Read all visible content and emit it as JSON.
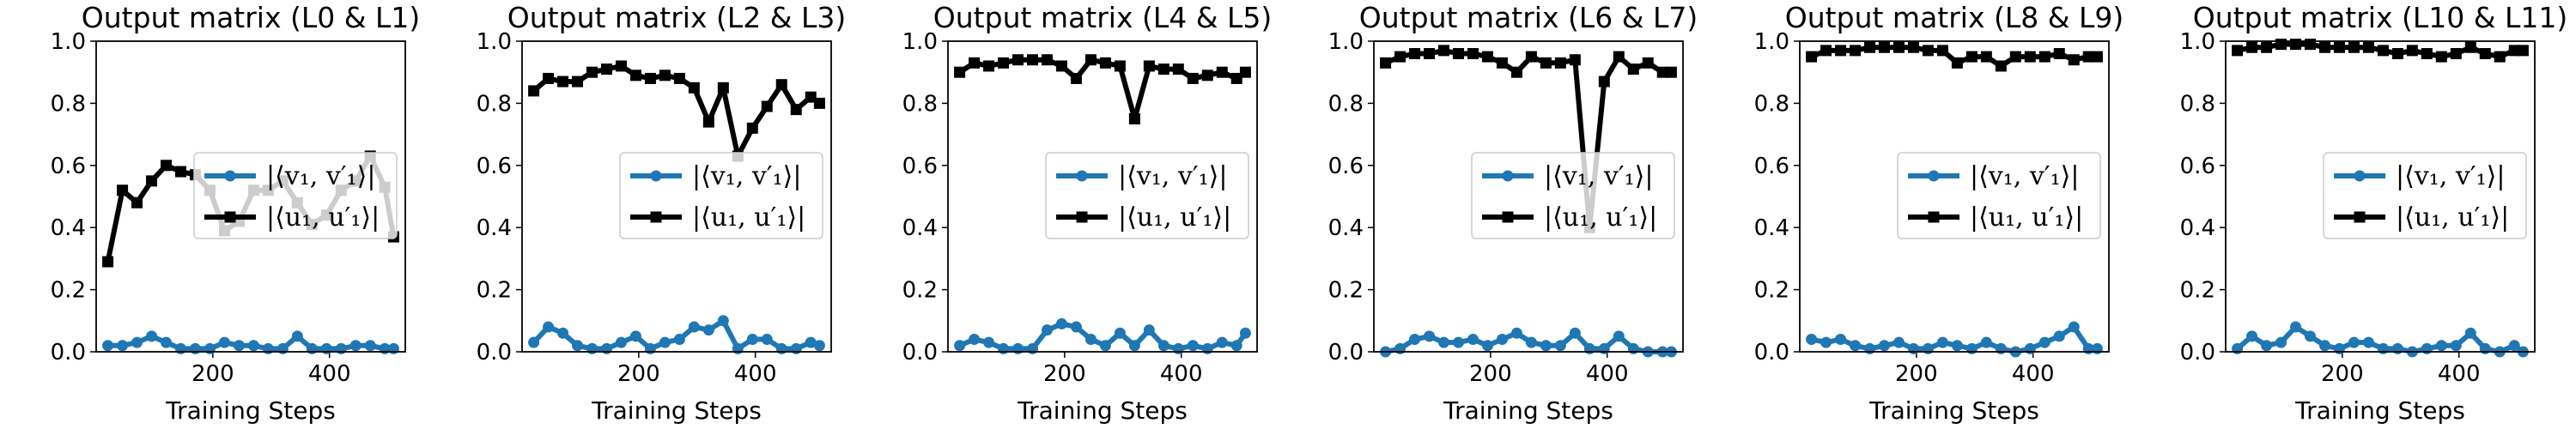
{
  "chart_data": [
    {
      "type": "line",
      "title": "Output matrix (L0 & L1)",
      "xlabel": "Training Steps",
      "ylabel": "",
      "xlim": [
        0,
        530
      ],
      "ylim": [
        0.0,
        1.0
      ],
      "xticks": [
        200,
        400
      ],
      "yticks": [
        0.0,
        0.2,
        0.4,
        0.6,
        0.8,
        1.0
      ],
      "ytick_labels": [
        "0.0",
        "0.2",
        "0.4",
        "0.6",
        "0.8",
        "1.0"
      ],
      "legend": "center-right",
      "x": [
        20,
        45,
        70,
        95,
        120,
        145,
        170,
        195,
        220,
        245,
        270,
        295,
        320,
        345,
        370,
        395,
        420,
        445,
        470,
        495,
        510
      ],
      "series": [
        {
          "name": "|⟨v₁, v′₁⟩|",
          "color": "#1f77b4",
          "marker": "circle",
          "values": [
            0.02,
            0.02,
            0.03,
            0.05,
            0.03,
            0.01,
            0.01,
            0.01,
            0.03,
            0.02,
            0.02,
            0.01,
            0.01,
            0.05,
            0.01,
            0.01,
            0.01,
            0.02,
            0.02,
            0.01,
            0.01
          ]
        },
        {
          "name": "|⟨u₁, u′₁⟩|",
          "color": "#000000",
          "marker": "square",
          "values": [
            0.29,
            0.52,
            0.48,
            0.55,
            0.6,
            0.58,
            0.57,
            0.52,
            0.39,
            0.42,
            0.52,
            0.52,
            0.55,
            0.48,
            0.41,
            0.44,
            0.52,
            0.55,
            0.63,
            0.53,
            0.37
          ]
        }
      ]
    },
    {
      "type": "line",
      "title": "Output matrix (L2 & L3)",
      "xlabel": "Training Steps",
      "ylabel": "",
      "xlim": [
        0,
        530
      ],
      "ylim": [
        0.0,
        1.0
      ],
      "xticks": [
        200,
        400
      ],
      "yticks": [
        0.0,
        0.2,
        0.4,
        0.6,
        0.8,
        1.0
      ],
      "ytick_labels": [
        "0.0",
        "0.2",
        "0.4",
        "0.6",
        "0.8",
        "1.0"
      ],
      "legend": "center-right",
      "x": [
        20,
        45,
        70,
        95,
        120,
        145,
        170,
        195,
        220,
        245,
        270,
        295,
        320,
        345,
        370,
        395,
        420,
        445,
        470,
        495,
        510
      ],
      "series": [
        {
          "name": "|⟨v₁, v′₁⟩|",
          "color": "#1f77b4",
          "marker": "circle",
          "values": [
            0.03,
            0.08,
            0.06,
            0.02,
            0.01,
            0.01,
            0.03,
            0.05,
            0.01,
            0.03,
            0.04,
            0.08,
            0.07,
            0.1,
            0.01,
            0.04,
            0.04,
            0.01,
            0.01,
            0.03,
            0.02
          ]
        },
        {
          "name": "|⟨u₁, u′₁⟩|",
          "color": "#000000",
          "marker": "square",
          "values": [
            0.84,
            0.88,
            0.87,
            0.87,
            0.9,
            0.91,
            0.92,
            0.89,
            0.88,
            0.89,
            0.88,
            0.85,
            0.74,
            0.85,
            0.63,
            0.72,
            0.79,
            0.86,
            0.78,
            0.82,
            0.8
          ]
        }
      ]
    },
    {
      "type": "line",
      "title": "Output matrix (L4 & L5)",
      "xlabel": "Training Steps",
      "ylabel": "",
      "xlim": [
        0,
        530
      ],
      "ylim": [
        0.0,
        1.0
      ],
      "xticks": [
        200,
        400
      ],
      "yticks": [
        0.0,
        0.2,
        0.4,
        0.6,
        0.8,
        1.0
      ],
      "ytick_labels": [
        "0.0",
        "0.2",
        "0.4",
        "0.6",
        "0.8",
        "1.0"
      ],
      "legend": "center-right",
      "x": [
        20,
        45,
        70,
        95,
        120,
        145,
        170,
        195,
        220,
        245,
        270,
        295,
        320,
        345,
        370,
        395,
        420,
        445,
        470,
        495,
        510
      ],
      "series": [
        {
          "name": "|⟨v₁, v′₁⟩|",
          "color": "#1f77b4",
          "marker": "circle",
          "values": [
            0.02,
            0.04,
            0.03,
            0.01,
            0.01,
            0.01,
            0.07,
            0.09,
            0.08,
            0.04,
            0.02,
            0.06,
            0.02,
            0.07,
            0.02,
            0.01,
            0.02,
            0.01,
            0.03,
            0.02,
            0.06
          ]
        },
        {
          "name": "|⟨u₁, u′₁⟩|",
          "color": "#000000",
          "marker": "square",
          "values": [
            0.9,
            0.93,
            0.92,
            0.93,
            0.94,
            0.94,
            0.94,
            0.92,
            0.88,
            0.94,
            0.93,
            0.92,
            0.75,
            0.92,
            0.91,
            0.91,
            0.88,
            0.89,
            0.9,
            0.88,
            0.9
          ]
        }
      ]
    },
    {
      "type": "line",
      "title": "Output matrix (L6 & L7)",
      "xlabel": "Training Steps",
      "ylabel": "",
      "xlim": [
        0,
        530
      ],
      "ylim": [
        0.0,
        1.0
      ],
      "xticks": [
        200,
        400
      ],
      "yticks": [
        0.0,
        0.2,
        0.4,
        0.6,
        0.8,
        1.0
      ],
      "ytick_labels": [
        "0.0",
        "0.2",
        "0.4",
        "0.6",
        "0.8",
        "1.0"
      ],
      "legend": "center-right",
      "x": [
        20,
        45,
        70,
        95,
        120,
        145,
        170,
        195,
        220,
        245,
        270,
        295,
        320,
        345,
        370,
        395,
        420,
        445,
        470,
        495,
        510
      ],
      "series": [
        {
          "name": "|⟨v₁, v′₁⟩|",
          "color": "#1f77b4",
          "marker": "circle",
          "values": [
            0.0,
            0.01,
            0.04,
            0.05,
            0.03,
            0.03,
            0.04,
            0.02,
            0.04,
            0.06,
            0.03,
            0.02,
            0.02,
            0.06,
            0.01,
            0.01,
            0.05,
            0.01,
            0.0,
            0.0,
            0.0
          ]
        },
        {
          "name": "|⟨u₁, u′₁⟩|",
          "color": "#000000",
          "marker": "square",
          "values": [
            0.93,
            0.95,
            0.96,
            0.96,
            0.97,
            0.96,
            0.96,
            0.95,
            0.93,
            0.9,
            0.95,
            0.93,
            0.93,
            0.94,
            0.4,
            0.87,
            0.95,
            0.91,
            0.93,
            0.9,
            0.9
          ]
        }
      ]
    },
    {
      "type": "line",
      "title": "Output matrix (L8 & L9)",
      "xlabel": "Training Steps",
      "ylabel": "",
      "xlim": [
        0,
        530
      ],
      "ylim": [
        0.0,
        1.0
      ],
      "xticks": [
        200,
        400
      ],
      "yticks": [
        0.0,
        0.2,
        0.4,
        0.6,
        0.8,
        1.0
      ],
      "ytick_labels": [
        "0.0",
        "0.2",
        "0.4",
        "0.6",
        "0.8",
        "1.0"
      ],
      "legend": "center-right",
      "x": [
        20,
        45,
        70,
        95,
        120,
        145,
        170,
        195,
        220,
        245,
        270,
        295,
        320,
        345,
        370,
        395,
        420,
        445,
        470,
        495,
        510
      ],
      "series": [
        {
          "name": "|⟨v₁, v′₁⟩|",
          "color": "#1f77b4",
          "marker": "circle",
          "values": [
            0.04,
            0.03,
            0.04,
            0.02,
            0.01,
            0.02,
            0.03,
            0.01,
            0.01,
            0.03,
            0.02,
            0.01,
            0.03,
            0.01,
            0.0,
            0.01,
            0.03,
            0.05,
            0.08,
            0.01,
            0.01
          ]
        },
        {
          "name": "|⟨u₁, u′₁⟩|",
          "color": "#000000",
          "marker": "square",
          "values": [
            0.95,
            0.97,
            0.97,
            0.97,
            0.98,
            0.98,
            0.98,
            0.98,
            0.97,
            0.97,
            0.93,
            0.95,
            0.95,
            0.92,
            0.95,
            0.95,
            0.95,
            0.96,
            0.94,
            0.95,
            0.95
          ]
        }
      ]
    },
    {
      "type": "line",
      "title": "Output matrix (L10 & L11)",
      "xlabel": "Training Steps",
      "ylabel": "",
      "xlim": [
        0,
        530
      ],
      "ylim": [
        0.0,
        1.0
      ],
      "xticks": [
        200,
        400
      ],
      "yticks": [
        0.0,
        0.2,
        0.4,
        0.6,
        0.8,
        1.0
      ],
      "ytick_labels": [
        "0.0",
        "0.2",
        "0.4",
        "0.6",
        "0.8",
        "1.0"
      ],
      "legend": "center-right",
      "x": [
        20,
        45,
        70,
        95,
        120,
        145,
        170,
        195,
        220,
        245,
        270,
        295,
        320,
        345,
        370,
        395,
        420,
        445,
        470,
        495,
        510
      ],
      "series": [
        {
          "name": "|⟨v₁, v′₁⟩|",
          "color": "#1f77b4",
          "marker": "circle",
          "values": [
            0.01,
            0.05,
            0.02,
            0.03,
            0.08,
            0.05,
            0.02,
            0.01,
            0.03,
            0.03,
            0.01,
            0.01,
            0.0,
            0.01,
            0.02,
            0.02,
            0.06,
            0.01,
            0.0,
            0.02,
            0.0
          ]
        },
        {
          "name": "|⟨u₁, u′₁⟩|",
          "color": "#000000",
          "marker": "square",
          "values": [
            0.97,
            0.98,
            0.98,
            0.99,
            0.99,
            0.99,
            0.98,
            0.98,
            0.98,
            0.98,
            0.97,
            0.96,
            0.97,
            0.96,
            0.95,
            0.96,
            0.98,
            0.96,
            0.95,
            0.97,
            0.97
          ]
        }
      ]
    }
  ]
}
